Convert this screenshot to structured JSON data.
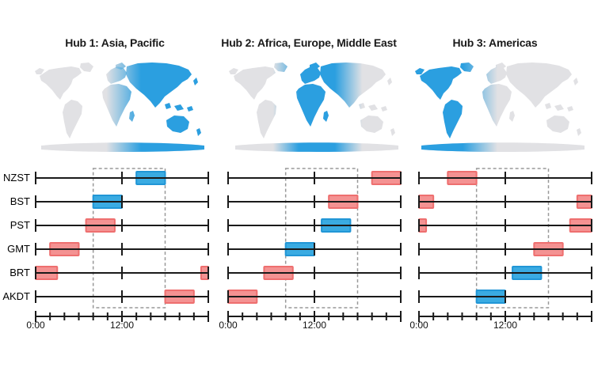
{
  "figure": {
    "background": "#ffffff"
  },
  "axis": {
    "tick_labels": [
      "0:00",
      "12:00"
    ],
    "range_hours": [
      0,
      24
    ],
    "minor_tick_every_hours": 2
  },
  "business_hours_window": {
    "start_hour": 8,
    "end_hour": 18,
    "style": "dashed-outline"
  },
  "colors": {
    "in_hours_blue_fill": "#3aabe2",
    "in_hours_blue_border": "#2196d6",
    "out_of_hours_red_fill": "#f49292",
    "out_of_hours_red_border": "#ee6f6f",
    "axis_line": "#1a1a1a",
    "dashed_outline": "#999999",
    "map_land_gray": "#e1e1e4",
    "map_highlight_blue": "#2b9fe0"
  },
  "maps": [
    {
      "highlight_region": "Asia, Pacific",
      "highlight_position": "right"
    },
    {
      "highlight_region": "Africa, Europe, Middle East",
      "highlight_position": "center"
    },
    {
      "highlight_region": "Americas",
      "highlight_position": "left"
    }
  ],
  "chart_data": [
    {
      "type": "bar",
      "subtype": "timezone-timeline",
      "title": "Hub 1: Asia, Pacific",
      "xlim": [
        0,
        24
      ],
      "x_tick_labels": [
        "0:00",
        "12:00"
      ],
      "rows": [
        {
          "label": "NZST",
          "segments": [
            {
              "start_hour": 14,
              "end_hour": 18,
              "color": "blue"
            }
          ]
        },
        {
          "label": "BST",
          "segments": [
            {
              "start_hour": 8,
              "end_hour": 12,
              "color": "blue"
            }
          ]
        },
        {
          "label": "PST",
          "segments": [
            {
              "start_hour": 7,
              "end_hour": 11,
              "color": "red"
            }
          ]
        },
        {
          "label": "GMT",
          "segments": [
            {
              "start_hour": 2,
              "end_hour": 6,
              "color": "red"
            }
          ]
        },
        {
          "label": "BRT",
          "segments": [
            {
              "start_hour": 0,
              "end_hour": 3,
              "color": "red"
            },
            {
              "start_hour": 23,
              "end_hour": 24,
              "color": "red"
            }
          ]
        },
        {
          "label": "AKDT",
          "segments": [
            {
              "start_hour": 18,
              "end_hour": 22,
              "color": "red"
            }
          ]
        }
      ]
    },
    {
      "type": "bar",
      "subtype": "timezone-timeline",
      "title": "Hub 2: Africa, Europe, Middle East",
      "xlim": [
        0,
        24
      ],
      "x_tick_labels": [
        "0:00",
        "12:00"
      ],
      "rows": [
        {
          "label": "NZST",
          "segments": [
            {
              "start_hour": 20,
              "end_hour": 24,
              "color": "red"
            }
          ]
        },
        {
          "label": "BST",
          "segments": [
            {
              "start_hour": 14,
              "end_hour": 18,
              "color": "red"
            }
          ]
        },
        {
          "label": "PST",
          "segments": [
            {
              "start_hour": 13,
              "end_hour": 17,
              "color": "blue"
            }
          ]
        },
        {
          "label": "GMT",
          "segments": [
            {
              "start_hour": 8,
              "end_hour": 12,
              "color": "blue"
            }
          ]
        },
        {
          "label": "BRT",
          "segments": [
            {
              "start_hour": 5,
              "end_hour": 9,
              "color": "red"
            }
          ]
        },
        {
          "label": "AKDT",
          "segments": [
            {
              "start_hour": 0,
              "end_hour": 4,
              "color": "red"
            }
          ]
        }
      ]
    },
    {
      "type": "bar",
      "subtype": "timezone-timeline",
      "title": "Hub 3: Americas",
      "xlim": [
        0,
        24
      ],
      "x_tick_labels": [
        "0:00",
        "12:00"
      ],
      "rows": [
        {
          "label": "NZST",
          "segments": [
            {
              "start_hour": 4,
              "end_hour": 8,
              "color": "red"
            }
          ]
        },
        {
          "label": "BST",
          "segments": [
            {
              "start_hour": 0,
              "end_hour": 2,
              "color": "red"
            },
            {
              "start_hour": 22,
              "end_hour": 24,
              "color": "red"
            }
          ]
        },
        {
          "label": "PST",
          "segments": [
            {
              "start_hour": 0,
              "end_hour": 1,
              "color": "red"
            },
            {
              "start_hour": 21,
              "end_hour": 24,
              "color": "red"
            }
          ]
        },
        {
          "label": "GMT",
          "segments": [
            {
              "start_hour": 16,
              "end_hour": 20,
              "color": "red"
            }
          ]
        },
        {
          "label": "BRT",
          "segments": [
            {
              "start_hour": 13,
              "end_hour": 17,
              "color": "blue"
            }
          ]
        },
        {
          "label": "AKDT",
          "segments": [
            {
              "start_hour": 8,
              "end_hour": 12,
              "color": "blue"
            }
          ]
        }
      ]
    }
  ]
}
